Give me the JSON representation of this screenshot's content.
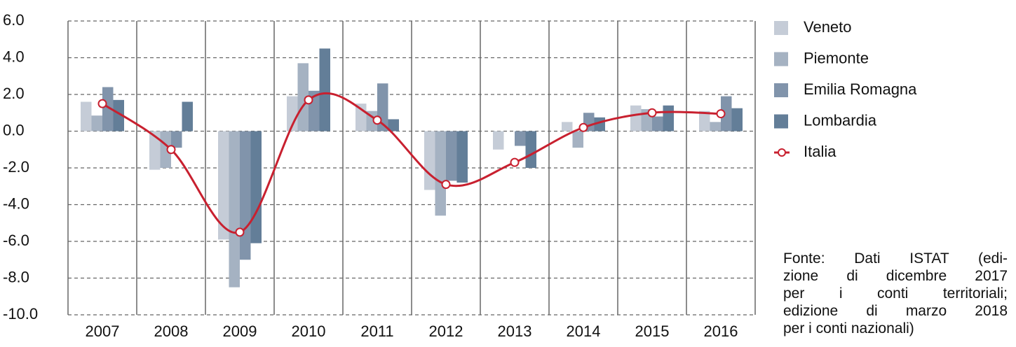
{
  "chart_data": {
    "type": "bar",
    "categories": [
      "2007",
      "2008",
      "2009",
      "2010",
      "2011",
      "2012",
      "2013",
      "2014",
      "2015",
      "2016"
    ],
    "series": [
      {
        "name": "Veneto",
        "color": "#c5ccd7",
        "values": [
          1.6,
          -2.1,
          -5.9,
          1.9,
          1.5,
          -3.2,
          -1.0,
          0.5,
          1.4,
          1.1
        ]
      },
      {
        "name": "Piemonte",
        "color": "#a5b2c2",
        "values": [
          0.85,
          -2.0,
          -8.5,
          3.7,
          1.1,
          -4.6,
          0.0,
          -0.9,
          1.2,
          0.5
        ]
      },
      {
        "name": "Emilia Romagna",
        "color": "#8194ab",
        "values": [
          2.4,
          -0.9,
          -7.0,
          2.2,
          2.6,
          -2.7,
          -0.8,
          1.0,
          0.8,
          1.9
        ]
      },
      {
        "name": "Lombardia",
        "color": "#637e98",
        "values": [
          1.7,
          1.6,
          -6.1,
          4.5,
          0.65,
          -2.8,
          -2.0,
          0.75,
          1.4,
          1.25
        ]
      },
      {
        "name": "Italia",
        "color": "#c8202f",
        "type": "line",
        "values": [
          1.5,
          -1.0,
          -5.5,
          1.7,
          0.6,
          -2.9,
          -1.7,
          0.2,
          1.0,
          0.95
        ]
      }
    ],
    "ylim": [
      -10,
      6
    ],
    "yticks": [
      {
        "value": -10,
        "label": "-10.0"
      },
      {
        "value": -8,
        "label": "-8.0"
      },
      {
        "value": -6,
        "label": "-6.0"
      },
      {
        "value": -4,
        "label": "-4.0"
      },
      {
        "value": -2,
        "label": "-2.0"
      },
      {
        "value": 0,
        "label": "0.0"
      },
      {
        "value": 2,
        "label": "2.0"
      },
      {
        "value": 4,
        "label": "4.0"
      },
      {
        "value": 6,
        "label": "6.0"
      }
    ],
    "grid": true,
    "legend": "right",
    "source": [
      "Fonte: Dati ISTAT (edi-",
      "zione di dicembre 2017",
      "per i conti territoriali;",
      "edizione di marzo 2018",
      "per i conti nazionali)"
    ]
  }
}
